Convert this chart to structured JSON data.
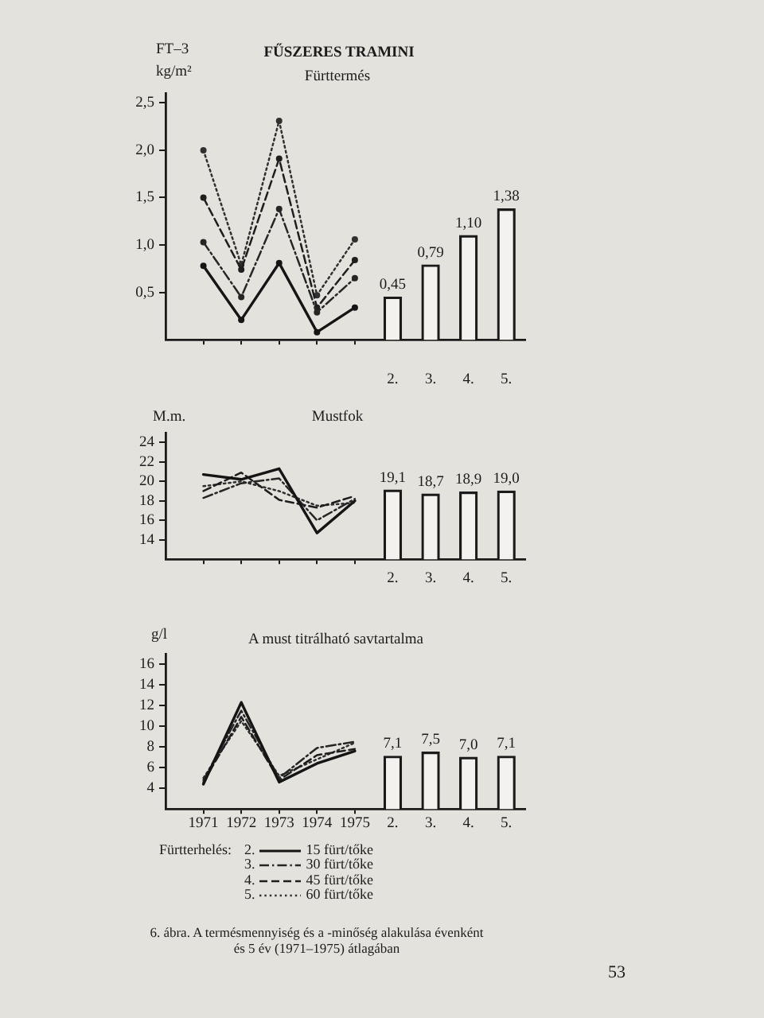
{
  "chart_data": [
    {
      "type": "line",
      "title": "FŰSZERES TRAMINI",
      "subtitle": "Fürttermés",
      "ylabel": "kg/m²",
      "annotations": [
        "FT–3"
      ],
      "categories": [
        null,
        null,
        null,
        null,
        null,
        "2.",
        "3.",
        "4.",
        "5."
      ],
      "series": [
        {
          "color": "#151515",
          "line_style": "solid",
          "values": [
            0.78,
            0.21,
            0.81,
            0.08,
            0.34,
            null,
            null,
            null,
            null
          ]
        },
        {
          "color": "#262626",
          "line_style": "dashdot",
          "values": [
            1.03,
            0.45,
            1.38,
            0.29,
            0.65,
            null,
            null,
            null,
            null
          ]
        },
        {
          "color": "#1e1e1e",
          "line_style": "dashed",
          "values": [
            1.5,
            0.74,
            1.91,
            0.34,
            0.84,
            null,
            null,
            null,
            null
          ]
        },
        {
          "color": "#303030",
          "line_style": "dotted",
          "values": [
            2.0,
            0.79,
            2.31,
            0.47,
            1.06,
            null,
            null,
            null,
            null
          ]
        },
        {
          "type": "bar",
          "color": "#f3f2ee",
          "values": [
            null,
            null,
            null,
            null,
            null,
            0.45,
            0.79,
            1.1,
            1.38
          ],
          "value_labels": [
            null,
            null,
            null,
            null,
            null,
            "0,45",
            "0,79",
            "1,10",
            "1,38"
          ]
        }
      ],
      "ylim": [
        0,
        2.6
      ],
      "yticks": [
        {
          "value": 0.5,
          "label": "0,5"
        },
        {
          "value": 1,
          "label": "1,0"
        },
        {
          "value": 1.5,
          "label": "1,5"
        },
        {
          "value": 2,
          "label": "2,0"
        },
        {
          "value": 2.5,
          "label": "2,5"
        }
      ],
      "marker": "circle"
    },
    {
      "type": "line",
      "title": "Mustfok",
      "ylabel": "M.m.",
      "categories": [
        null,
        null,
        null,
        null,
        null,
        "2.",
        "3.",
        "4.",
        "5."
      ],
      "series": [
        {
          "color": "#151515",
          "line_style": "solid",
          "values": [
            20.7,
            20.2,
            21.3,
            14.7,
            18.0,
            null,
            null,
            null,
            null
          ]
        },
        {
          "color": "#262626",
          "line_style": "dashdot",
          "values": [
            18.3,
            19.8,
            20.3,
            16.0,
            18.2,
            null,
            null,
            null,
            null
          ]
        },
        {
          "color": "#1e1e1e",
          "line_style": "dashed",
          "values": [
            19.0,
            20.9,
            18.1,
            17.3,
            18.5,
            null,
            null,
            null,
            null
          ]
        },
        {
          "color": "#303030",
          "line_style": "dotted",
          "values": [
            19.5,
            20.0,
            19.0,
            17.5,
            17.8,
            null,
            null,
            null,
            null
          ]
        },
        {
          "type": "bar",
          "color": "#f3f2ee",
          "values": [
            null,
            null,
            null,
            null,
            null,
            19.1,
            18.7,
            18.9,
            19.0
          ],
          "value_labels": [
            null,
            null,
            null,
            null,
            null,
            "19,1",
            "18,7",
            "18,9",
            "19,0"
          ]
        }
      ],
      "ylim": [
        12,
        25
      ],
      "yticks": [
        14,
        16,
        18,
        20,
        22,
        24
      ]
    },
    {
      "type": "line",
      "title": "A must titrálható savtartalma",
      "ylabel": "g/l",
      "annotations": [
        "6. ábra. A termésmennyiség és a -minőség alakulása évenként és 5 év (1971–1975) átlagában",
        "53"
      ],
      "categories": [
        "1971",
        "1972",
        "1973",
        "1974",
        "1975",
        "2.",
        "3.",
        "4.",
        "5."
      ],
      "series": [
        {
          "name": "15 fürt/tőke",
          "color": "#151515",
          "line_style": "solid",
          "values": [
            4.4,
            12.3,
            4.6,
            6.4,
            7.6,
            null,
            null,
            null,
            null
          ]
        },
        {
          "name": "30 fürt/tőke",
          "color": "#262626",
          "line_style": "dashdot",
          "values": [
            4.8,
            11.5,
            5.0,
            7.9,
            8.5,
            null,
            null,
            null,
            null
          ]
        },
        {
          "name": "45 fürt/tőke",
          "color": "#1e1e1e",
          "line_style": "dashed",
          "values": [
            4.6,
            10.9,
            4.8,
            7.2,
            7.8,
            null,
            null,
            null,
            null
          ]
        },
        {
          "name": "60 fürt/tőke",
          "color": "#303030",
          "line_style": "dotted",
          "values": [
            5.0,
            10.5,
            5.2,
            6.8,
            8.4,
            null,
            null,
            null,
            null
          ]
        },
        {
          "type": "bar",
          "color": "#f3f2ee",
          "values": [
            null,
            null,
            null,
            null,
            null,
            7.1,
            7.5,
            7.0,
            7.1
          ],
          "value_labels": [
            null,
            null,
            null,
            null,
            null,
            "7,1",
            "7,5",
            "7,0",
            "7,1"
          ]
        }
      ],
      "ylim": [
        2,
        17
      ],
      "yticks": [
        4,
        6,
        8,
        10,
        12,
        14,
        16
      ],
      "legend": "bottom",
      "legend_title": "Fürtterhelés:"
    }
  ]
}
